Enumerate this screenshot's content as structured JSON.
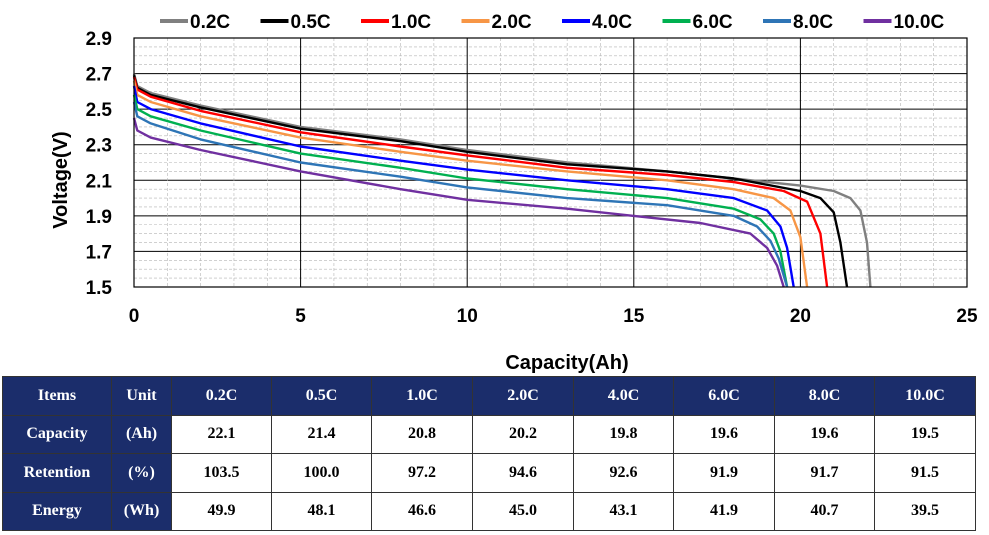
{
  "chart_data": {
    "type": "line",
    "title": "",
    "xlabel": "Capacity(Ah)",
    "ylabel": "Voltage(V)",
    "xlim": [
      0,
      25
    ],
    "ylim": [
      1.5,
      2.9
    ],
    "xticks": [
      "0",
      "5",
      "10",
      "15",
      "20",
      "25"
    ],
    "yticks": [
      "2.9",
      "2.7",
      "2.5",
      "2.3",
      "2.1",
      "1.9",
      "1.7",
      "1.5"
    ],
    "grid": true,
    "legend_position": "top",
    "series": [
      {
        "name": "0.2C",
        "color": "#808080",
        "x": [
          0,
          0.1,
          0.5,
          2,
          5,
          8,
          10,
          13,
          16,
          18,
          20,
          21,
          21.5,
          21.8,
          22.0,
          22.1
        ],
        "y": [
          2.7,
          2.63,
          2.59,
          2.52,
          2.4,
          2.33,
          2.27,
          2.2,
          2.15,
          2.11,
          2.07,
          2.04,
          2.0,
          1.93,
          1.75,
          1.5
        ]
      },
      {
        "name": "0.5C",
        "color": "#000000",
        "x": [
          0,
          0.1,
          0.5,
          2,
          5,
          8,
          10,
          13,
          16,
          18,
          20,
          20.6,
          21.0,
          21.2,
          21.4
        ],
        "y": [
          2.69,
          2.62,
          2.58,
          2.51,
          2.39,
          2.32,
          2.26,
          2.19,
          2.15,
          2.11,
          2.04,
          2.0,
          1.92,
          1.75,
          1.5
        ]
      },
      {
        "name": "1.0C",
        "color": "#ff0000",
        "x": [
          0,
          0.1,
          0.5,
          2,
          5,
          8,
          10,
          13,
          16,
          18,
          19.5,
          20.2,
          20.6,
          20.8
        ],
        "y": [
          2.68,
          2.61,
          2.57,
          2.49,
          2.37,
          2.29,
          2.24,
          2.17,
          2.13,
          2.09,
          2.04,
          1.98,
          1.8,
          1.5
        ]
      },
      {
        "name": "2.0C",
        "color": "#f79646",
        "x": [
          0,
          0.1,
          0.5,
          2,
          5,
          8,
          10,
          13,
          16,
          18,
          19.2,
          19.7,
          20.0,
          20.2
        ],
        "y": [
          2.66,
          2.58,
          2.54,
          2.46,
          2.34,
          2.26,
          2.21,
          2.15,
          2.1,
          2.05,
          2.0,
          1.93,
          1.78,
          1.5
        ]
      },
      {
        "name": "4.0C",
        "color": "#0000ff",
        "x": [
          0,
          0.1,
          0.5,
          2,
          5,
          8,
          10,
          13,
          16,
          18,
          19.0,
          19.4,
          19.6,
          19.8
        ],
        "y": [
          2.63,
          2.54,
          2.5,
          2.42,
          2.29,
          2.21,
          2.16,
          2.1,
          2.05,
          2.0,
          1.93,
          1.84,
          1.72,
          1.5
        ]
      },
      {
        "name": "6.0C",
        "color": "#00b050",
        "x": [
          0,
          0.1,
          0.5,
          2,
          5,
          8,
          10,
          13,
          16,
          18,
          18.8,
          19.2,
          19.4,
          19.6
        ],
        "y": [
          2.58,
          2.5,
          2.46,
          2.38,
          2.25,
          2.17,
          2.11,
          2.05,
          2.0,
          1.94,
          1.88,
          1.8,
          1.7,
          1.5
        ]
      },
      {
        "name": "8.0C",
        "color": "#2e75b6",
        "x": [
          0,
          0.1,
          0.5,
          2,
          5,
          8,
          10,
          13,
          16,
          18,
          18.7,
          19.1,
          19.35,
          19.6
        ],
        "y": [
          2.54,
          2.46,
          2.42,
          2.33,
          2.2,
          2.12,
          2.06,
          2.0,
          1.96,
          1.9,
          1.84,
          1.76,
          1.66,
          1.5
        ]
      },
      {
        "name": "10.0C",
        "color": "#7030a0",
        "x": [
          0,
          0.1,
          0.5,
          2,
          5,
          8,
          10,
          13,
          15,
          17,
          18.5,
          19.0,
          19.3,
          19.5
        ],
        "y": [
          2.45,
          2.38,
          2.34,
          2.27,
          2.15,
          2.05,
          1.99,
          1.94,
          1.9,
          1.86,
          1.8,
          1.72,
          1.62,
          1.5
        ]
      }
    ]
  },
  "table": {
    "headers": [
      "Items",
      "Unit",
      "0.2C",
      "0.5C",
      "1.0C",
      "2.0C",
      "4.0C",
      "6.0C",
      "8.0C",
      "10.0C"
    ],
    "rows": [
      {
        "item": "Capacity",
        "unit": "(Ah)",
        "values": [
          "22.1",
          "21.4",
          "20.8",
          "20.2",
          "19.8",
          "19.6",
          "19.6",
          "19.5"
        ]
      },
      {
        "item": "Retention",
        "unit": "(%)",
        "values": [
          "103.5",
          "100.0",
          "97.2",
          "94.6",
          "92.6",
          "91.9",
          "91.7",
          "91.5"
        ]
      },
      {
        "item": "Energy",
        "unit": "(Wh)",
        "values": [
          "49.9",
          "48.1",
          "46.6",
          "45.0",
          "43.1",
          "41.9",
          "40.7",
          "39.5"
        ]
      }
    ]
  }
}
